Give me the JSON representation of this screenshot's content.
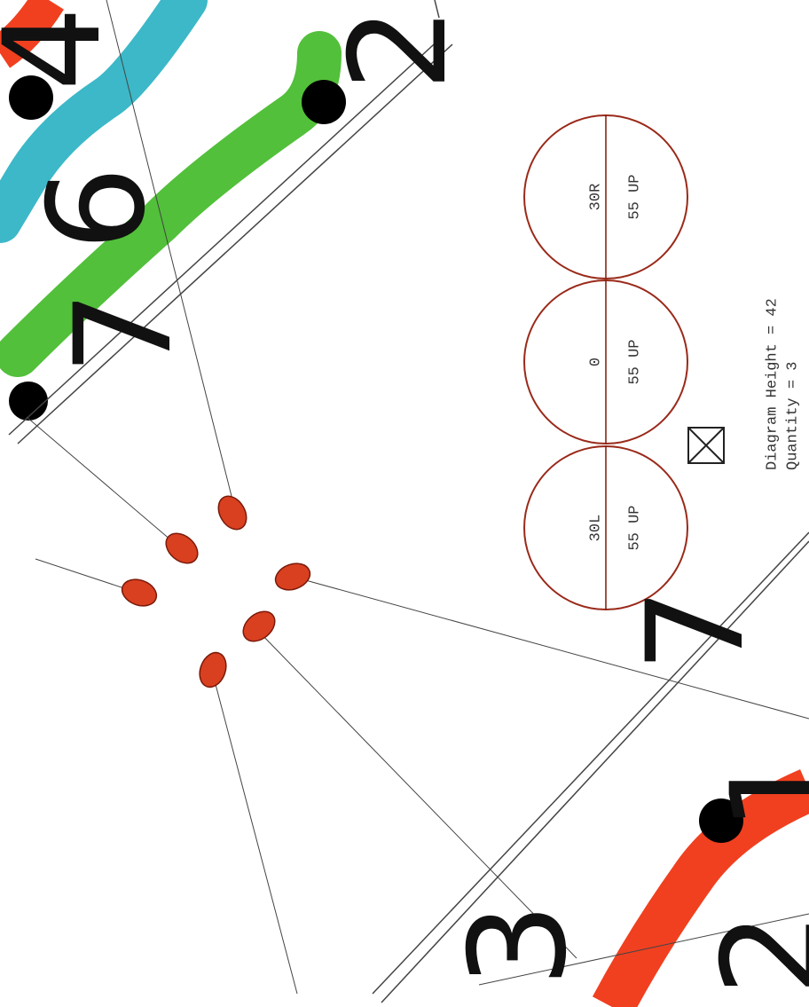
{
  "diagram": {
    "circles": [
      {
        "top": "30L",
        "bottom": "55 UP"
      },
      {
        "top": "0",
        "bottom": "55 UP"
      },
      {
        "top": "30R",
        "bottom": "55 UP"
      }
    ],
    "notes": [
      "Diagram Height = 42",
      "Quantity = 3"
    ],
    "zone_labels": [
      "4",
      "2",
      "6",
      "7",
      "7",
      "1",
      "3",
      "2"
    ]
  }
}
